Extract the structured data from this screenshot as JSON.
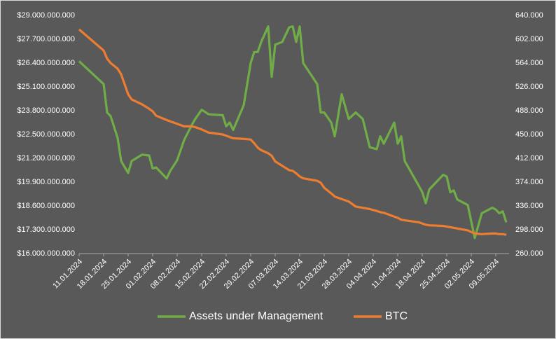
{
  "chart_data": {
    "type": "line",
    "legend": "bottom",
    "x": [
      "11.01.2024",
      "18.01.2024",
      "19.01.2024",
      "20.01.2024",
      "22.01.2024",
      "23.01.2024",
      "25.01.2024",
      "26.01.2024",
      "29.01.2024",
      "31.01.2024",
      "01.02.2024",
      "02.02.2024",
      "05.02.2024",
      "06.02.2024",
      "08.02.2024",
      "10.02.2024",
      "12.02.2024",
      "13.02.2024",
      "15.02.2024",
      "17.02.2024",
      "21.02.2024",
      "22.02.2024",
      "23.02.2024",
      "24.02.2024",
      "27.02.2024",
      "29.02.2024",
      "01.03.2024",
      "02.03.2024",
      "03.03.2024",
      "05.03.2024",
      "06.03.2024",
      "07.03.2024",
      "09.03.2024",
      "11.03.2024",
      "12.03.2024",
      "13.03.2024",
      "14.03.2024",
      "15.03.2024",
      "19.03.2024",
      "20.03.2024",
      "21.03.2024",
      "23.03.2024",
      "24.03.2024",
      "26.03.2024",
      "28.03.2024",
      "30.03.2024",
      "01.04.2024",
      "03.04.2024",
      "05.04.2024",
      "06.04.2024",
      "07.04.2024",
      "10.04.2024",
      "11.04.2024",
      "12.04.2024",
      "13.04.2024",
      "17.04.2024",
      "18.04.2024",
      "19.04.2024",
      "20.04.2024",
      "24.04.2024",
      "25.04.2024",
      "26.04.2024",
      "27.04.2024",
      "28.04.2024",
      "01.05.2024",
      "03.05.2024",
      "05.05.2024",
      "08.05.2024",
      "09.05.2024",
      "10.05.2024",
      "11.05.2024",
      "12.05.2024"
    ],
    "series": [
      {
        "name": "Assets under Management",
        "color": "#70ad47",
        "axis": "y",
        "values": [
          26500000000,
          25250000000,
          23700000000,
          23500000000,
          22300000000,
          21050000000,
          20400000000,
          21050000000,
          21400000000,
          21350000000,
          20650000000,
          20700000000,
          20100000000,
          20500000000,
          21100000000,
          22200000000,
          22950000000,
          23300000000,
          23850000000,
          23600000000,
          23550000000,
          22950000000,
          23150000000,
          22750000000,
          24100000000,
          26400000000,
          27000000000,
          27000000000,
          27550000000,
          28400000000,
          25650000000,
          27400000000,
          27550000000,
          28350000000,
          28400000000,
          27550000000,
          28400000000,
          26400000000,
          25250000000,
          23700000000,
          23700000000,
          23150000000,
          22400000000,
          24700000000,
          23350000000,
          23700000000,
          23350000000,
          21800000000,
          21700000000,
          22400000000,
          22000000000,
          23150000000,
          22000000000,
          22400000000,
          21050000000,
          19700000000,
          19350000000,
          18750000000,
          19500000000,
          20300000000,
          20200000000,
          19350000000,
          19450000000,
          18950000000,
          18650000000,
          16850000000,
          18200000000,
          18500000000,
          18400000000,
          18200000000,
          18300000000,
          17700000000
        ]
      },
      {
        "name": "BTC",
        "color": "#ed7d31",
        "axis": "y2",
        "values": [
          617600,
          584000,
          571000,
          564000,
          555000,
          546000,
          514000,
          506000,
          498000,
          491000,
          487000,
          480000,
          473000,
          471000,
          467000,
          463000,
          463000,
          462000,
          458000,
          453000,
          450000,
          448000,
          446000,
          444000,
          443000,
          442000,
          436000,
          429000,
          425000,
          420000,
          416000,
          407000,
          400000,
          393000,
          392000,
          388000,
          383000,
          380000,
          376000,
          373000,
          365000,
          356000,
          351000,
          347000,
          343000,
          335000,
          333000,
          331000,
          328000,
          326000,
          325000,
          319000,
          317000,
          314000,
          313000,
          310000,
          308000,
          306000,
          305000,
          304000,
          303000,
          302000,
          301000,
          300000,
          297000,
          292000,
          291000,
          292000,
          292000,
          291000,
          291000,
          290000
        ]
      }
    ],
    "xticks": [
      "11.01.2024",
      "18.01.2024",
      "25.01.2024",
      "01.02.2024",
      "08.02.2024",
      "15.02.2024",
      "22.02.2024",
      "29.02.2024",
      "07.03.2024",
      "14.03.2024",
      "21.03.2024",
      "28.03.2024",
      "04.04.2024",
      "11.04.2024",
      "18.04.2024",
      "25.04.2024",
      "02.05.2024",
      "09.05.2024"
    ],
    "ylim": [
      16000000000,
      29000000000
    ],
    "yticks": [
      {
        "value": 16000000000,
        "label": "$16.000.000.000"
      },
      {
        "value": 17300000000,
        "label": "$17.300.000.000"
      },
      {
        "value": 18600000000,
        "label": "$18.600.000.000"
      },
      {
        "value": 19900000000,
        "label": "$19.900.000.000"
      },
      {
        "value": 21200000000,
        "label": "$21.200.000.000"
      },
      {
        "value": 22500000000,
        "label": "$22.500.000.000"
      },
      {
        "value": 23800000000,
        "label": "$23.800.000.000"
      },
      {
        "value": 25100000000,
        "label": "$25.100.000.000"
      },
      {
        "value": 26400000000,
        "label": "$26.400.000.000"
      },
      {
        "value": 27700000000,
        "label": "$27.700.000.000"
      },
      {
        "value": 29000000000,
        "label": "$29.000.000.000"
      }
    ],
    "y2lim": [
      260000,
      640000
    ],
    "y2ticks": [
      {
        "value": 260000,
        "label": "260.000"
      },
      {
        "value": 298000,
        "label": "298.000"
      },
      {
        "value": 336000,
        "label": "336.000"
      },
      {
        "value": 374000,
        "label": "374.000"
      },
      {
        "value": 412000,
        "label": "412.000"
      },
      {
        "value": 450000,
        "label": "450.000"
      },
      {
        "value": 488000,
        "label": "488.000"
      },
      {
        "value": 526000,
        "label": "526.000"
      },
      {
        "value": 564000,
        "label": "564.000"
      },
      {
        "value": 602000,
        "label": "602.000"
      },
      {
        "value": 640000,
        "label": "640.000"
      }
    ]
  }
}
